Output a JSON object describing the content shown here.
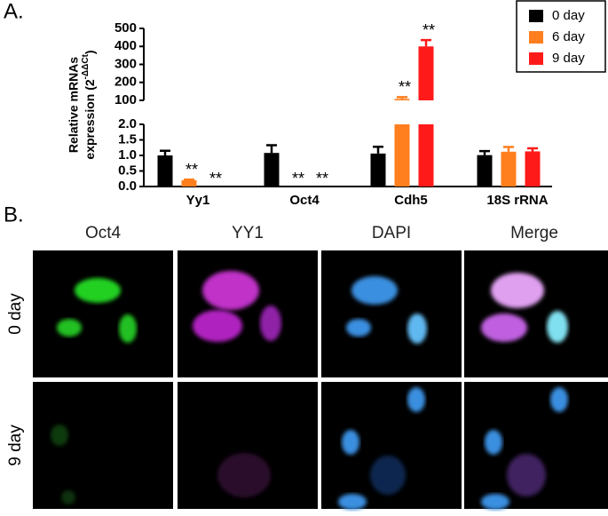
{
  "figure": {
    "panel_a": "A.",
    "panel_b": "B."
  },
  "chart_data": {
    "type": "bar",
    "y_label": {
      "line1": "Relative mRNAs",
      "line2": "expression (2",
      "superscript": "-ΔΔCt",
      "close": ")"
    },
    "categories": [
      "Yy1",
      "Oct4",
      "Cdh5",
      "18S rRNA"
    ],
    "series": [
      {
        "name": "0 day",
        "color": "#000000",
        "values": [
          1.0,
          1.08,
          1.06,
          1.01
        ],
        "errors": [
          0.15,
          0.25,
          0.22,
          0.13
        ],
        "significance": [
          null,
          null,
          null,
          null
        ]
      },
      {
        "name": "6 day",
        "color": "#ff7f1e",
        "values": [
          0.2,
          0,
          108,
          1.12
        ],
        "errors": [
          0.02,
          0,
          10,
          0.15
        ],
        "significance": [
          "**",
          "**",
          "**",
          null
        ]
      },
      {
        "name": "9 day",
        "color": "#ff1a1a",
        "values": [
          0,
          0,
          400,
          1.13
        ],
        "errors": [
          0,
          0,
          35,
          0.1
        ],
        "significance": [
          "**",
          "**",
          "**",
          null
        ]
      }
    ],
    "ylim": [
      0,
      500
    ],
    "axis_break": [
      2,
      100
    ],
    "yticks": [
      {
        "value": 0,
        "label": "0.0"
      },
      0.5,
      {
        "value": 1,
        "label": "1.0"
      },
      1.5,
      {
        "value": 2,
        "label": "2.0"
      },
      100,
      200,
      300,
      400,
      500
    ],
    "legend": "top-right"
  },
  "images": {
    "columns": [
      "Oct4",
      "YY1",
      "DAPI",
      "Merge"
    ],
    "rows": [
      "0 day",
      "9 day"
    ]
  }
}
